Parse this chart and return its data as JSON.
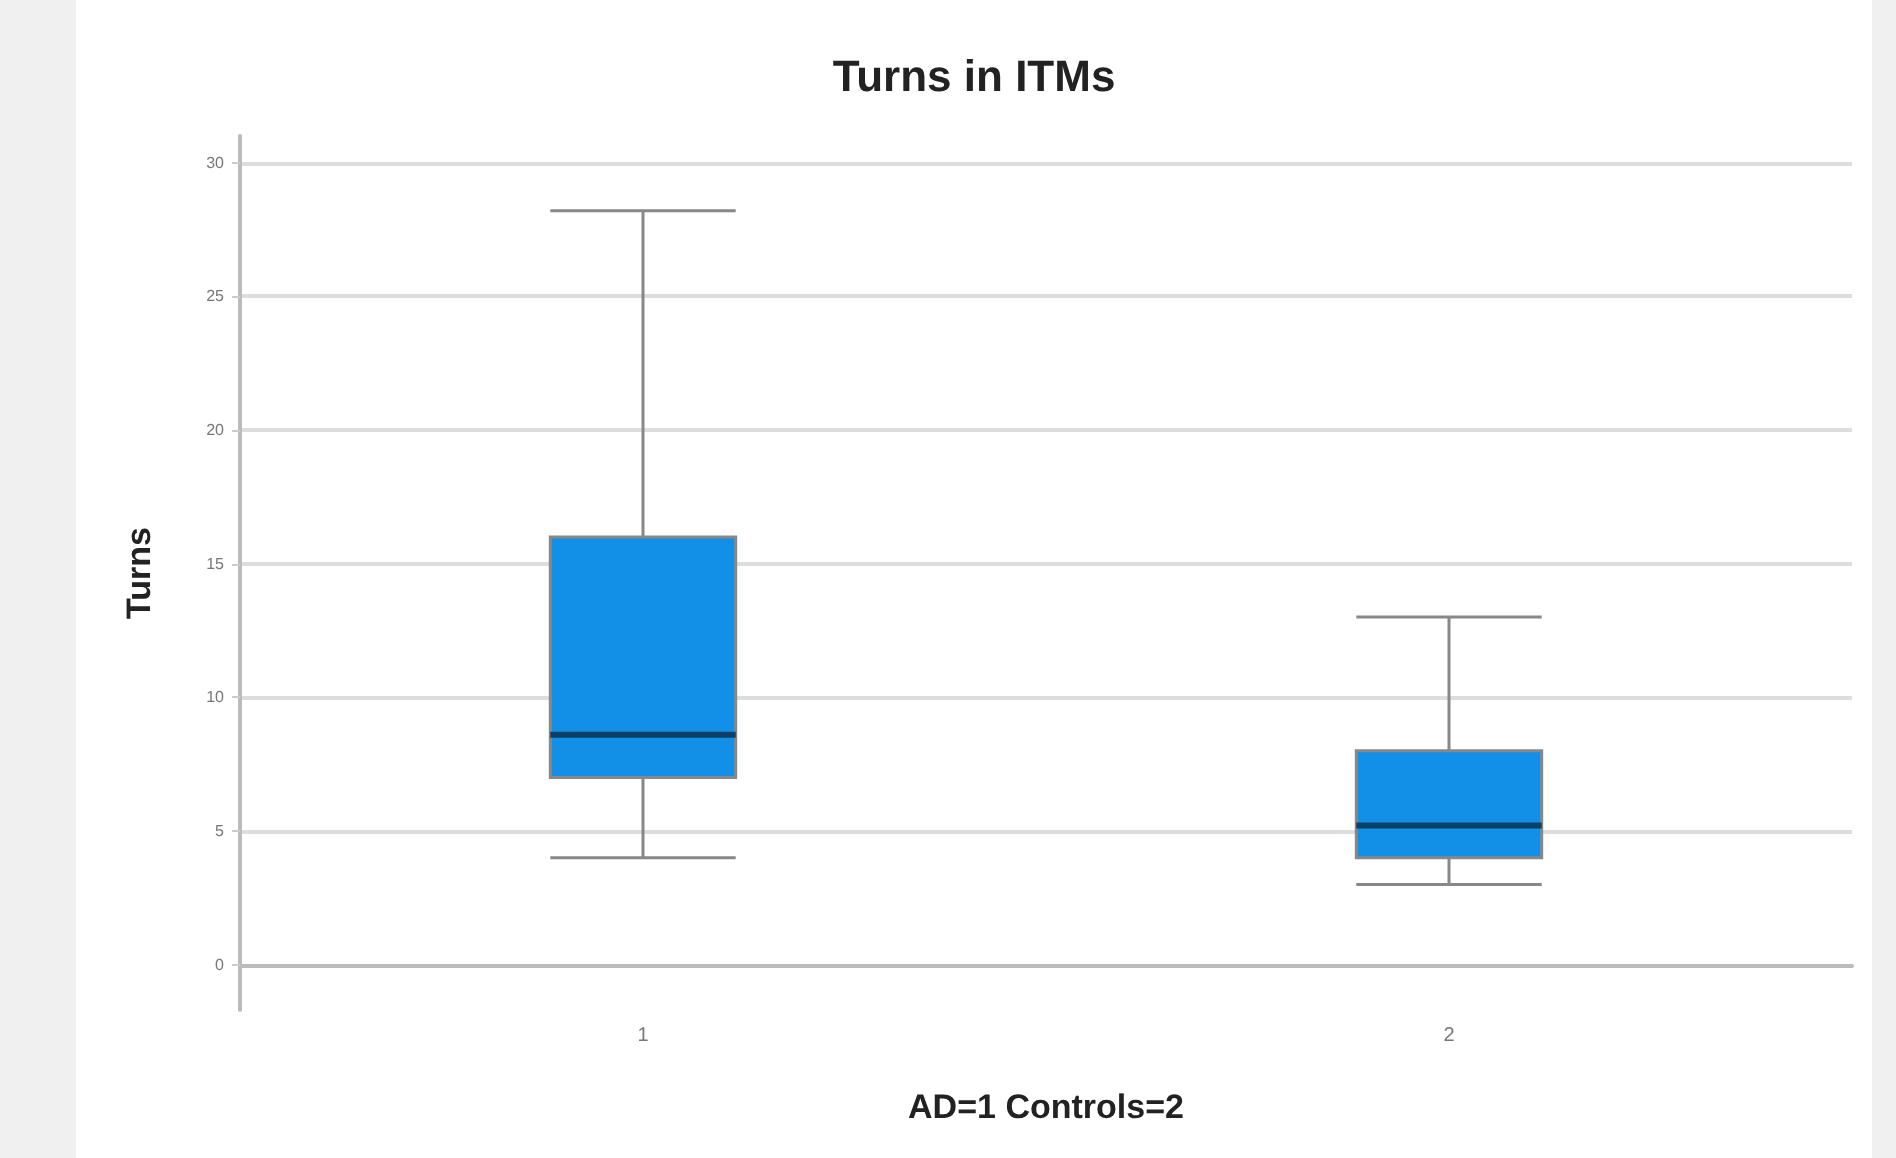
{
  "chart_data": {
    "type": "box",
    "title": "Turns in ITMs",
    "xlabel": "AD=1 Controls=2",
    "ylabel": "Turns",
    "categories": [
      "1",
      "2"
    ],
    "series": [
      {
        "color": "#1290e8",
        "boxes": [
          {
            "low": 4,
            "q1": 7,
            "median": 8.6,
            "q3": 16,
            "high": 28.2
          },
          {
            "low": 3,
            "q1": 4,
            "median": 5.2,
            "q3": 8,
            "high": 13
          }
        ]
      }
    ],
    "ylim": [
      -1.7,
      31
    ],
    "yticks": [
      0,
      5,
      10,
      15,
      20,
      25,
      30
    ],
    "grid": "y"
  }
}
